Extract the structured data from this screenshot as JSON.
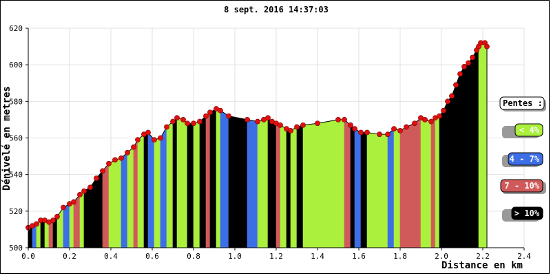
{
  "chart_data": {
    "type": "area",
    "title": "8 sept. 2016 14:37:03",
    "xlabel": "Distance en km",
    "ylabel": "Dénivelé en metres",
    "xlim": [
      0,
      2.4
    ],
    "ylim": [
      500,
      620
    ],
    "x_ticks": [
      "0.0",
      "0.2",
      "0.4",
      "0.6",
      "0.8",
      "1.0",
      "1.2",
      "1.4",
      "1.6",
      "1.8",
      "2.0",
      "2.2",
      "2.4"
    ],
    "y_ticks": [
      "500",
      "520",
      "540",
      "560",
      "580",
      "600",
      "620"
    ],
    "grid": true,
    "legend_position": "right",
    "legend": {
      "title": "Pentes :",
      "items": [
        {
          "label": "< 4%",
          "color": "#aaf03c",
          "text_color": "#ffffff"
        },
        {
          "label": "4 - 7%",
          "color": "#3c6ee6",
          "text_color": "#ffffff"
        },
        {
          "label": "7 - 10%",
          "color": "#d05a5a",
          "text_color": "#ffffff"
        },
        {
          "label": "> 10%",
          "color": "#000000",
          "text_color": "#ffffff"
        }
      ]
    },
    "colors": {
      "gentle": "#aaf03c",
      "moderate": "#3c6ee6",
      "steep": "#d05a5a",
      "very_steep": "#000000",
      "marker": "#e01010"
    },
    "points": [
      [
        0.0,
        511
      ],
      [
        0.02,
        512
      ],
      [
        0.04,
        513
      ],
      [
        0.06,
        515
      ],
      [
        0.08,
        515
      ],
      [
        0.1,
        514
      ],
      [
        0.12,
        515
      ],
      [
        0.14,
        517
      ],
      [
        0.17,
        522
      ],
      [
        0.2,
        524
      ],
      [
        0.22,
        525
      ],
      [
        0.25,
        529
      ],
      [
        0.27,
        531
      ],
      [
        0.3,
        533
      ],
      [
        0.33,
        538
      ],
      [
        0.36,
        542
      ],
      [
        0.39,
        546
      ],
      [
        0.42,
        548
      ],
      [
        0.45,
        549
      ],
      [
        0.48,
        552
      ],
      [
        0.51,
        555
      ],
      [
        0.53,
        559
      ],
      [
        0.56,
        562
      ],
      [
        0.58,
        563
      ],
      [
        0.61,
        559
      ],
      [
        0.64,
        560
      ],
      [
        0.67,
        566
      ],
      [
        0.7,
        569
      ],
      [
        0.72,
        571
      ],
      [
        0.75,
        570
      ],
      [
        0.77,
        568
      ],
      [
        0.8,
        568
      ],
      [
        0.83,
        569
      ],
      [
        0.86,
        572
      ],
      [
        0.88,
        574
      ],
      [
        0.91,
        576
      ],
      [
        0.93,
        575
      ],
      [
        0.97,
        572
      ],
      [
        1.06,
        570
      ],
      [
        1.11,
        569
      ],
      [
        1.14,
        570
      ],
      [
        1.16,
        571
      ],
      [
        1.18,
        569
      ],
      [
        1.2,
        568
      ],
      [
        1.22,
        567
      ],
      [
        1.25,
        565
      ],
      [
        1.27,
        564
      ],
      [
        1.3,
        566
      ],
      [
        1.33,
        567
      ],
      [
        1.4,
        568
      ],
      [
        1.5,
        570
      ],
      [
        1.53,
        570
      ],
      [
        1.56,
        567
      ],
      [
        1.58,
        565
      ],
      [
        1.61,
        563
      ],
      [
        1.64,
        563
      ],
      [
        1.7,
        562
      ],
      [
        1.74,
        562
      ],
      [
        1.77,
        565
      ],
      [
        1.8,
        564
      ],
      [
        1.83,
        566
      ],
      [
        1.87,
        568
      ],
      [
        1.9,
        571
      ],
      [
        1.92,
        570
      ],
      [
        1.95,
        569
      ],
      [
        1.97,
        571
      ],
      [
        1.99,
        572
      ],
      [
        2.01,
        575
      ],
      [
        2.03,
        580
      ],
      [
        2.05,
        583
      ],
      [
        2.07,
        589
      ],
      [
        2.09,
        595
      ],
      [
        2.11,
        599
      ],
      [
        2.13,
        601
      ],
      [
        2.15,
        604
      ],
      [
        2.17,
        608
      ],
      [
        2.18,
        610
      ],
      [
        2.19,
        612
      ],
      [
        2.21,
        612
      ],
      [
        2.22,
        610
      ]
    ],
    "segment_classes": [
      3,
      1,
      0,
      3,
      0,
      2,
      3,
      0,
      1,
      0,
      2,
      0,
      3,
      3,
      3,
      2,
      0,
      0,
      1,
      0,
      2,
      0,
      3,
      1,
      0,
      1,
      0,
      3,
      0,
      0,
      3,
      0,
      3,
      2,
      3,
      0,
      1,
      3,
      1,
      0,
      0,
      3,
      3,
      2,
      0,
      3,
      0,
      3,
      0,
      0,
      0,
      2,
      3,
      1,
      3,
      0,
      0,
      1,
      0,
      2,
      2,
      2,
      0,
      0,
      2,
      0,
      3,
      3,
      3,
      3,
      3,
      3,
      3,
      3,
      3,
      3,
      0,
      0,
      0
    ]
  }
}
